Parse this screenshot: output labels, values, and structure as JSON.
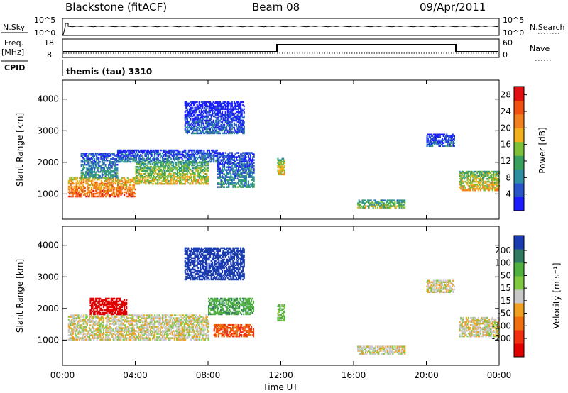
{
  "header": {
    "station": "Blackstone (fitACF)",
    "beam": "Beam 08",
    "date": "09/Apr/2011"
  },
  "panels": {
    "nsky_label": "N.Sky",
    "nsky_ticks": [
      "10^5",
      "10^0"
    ],
    "nsearch_label": "N.Search",
    "nsearch_ticks": [
      "10^5",
      "10^0"
    ],
    "freq_label": "Freq.",
    "freq_unit": "[MHz]",
    "freq_ticks": [
      "18",
      "8"
    ],
    "nave_label": "Nave",
    "nave_ticks": [
      "60",
      "0"
    ],
    "cpid_label": "CPID",
    "cpid_text": "themis (tau) 3310"
  },
  "chart_data": [
    {
      "type": "heatmap",
      "name": "power",
      "xlabel": "Time UT",
      "ylabel": "Slant Range [km]",
      "x_ticks": [
        "00:00",
        "04:00",
        "08:00",
        "12:00",
        "16:00",
        "20:00",
        "00:00"
      ],
      "xlim_hours": [
        0,
        24
      ],
      "y_ticks": [
        1000,
        2000,
        3000,
        4000
      ],
      "ylim_km": [
        200,
        4600
      ],
      "colorbar": {
        "label": "Power [dB]",
        "ticks": [
          4,
          8,
          12,
          16,
          20,
          24,
          28
        ],
        "range": [
          0,
          30
        ],
        "colors": [
          "#1c1cff",
          "#2a55c8",
          "#2f8fa0",
          "#3aa060",
          "#7fc03a",
          "#f0b020",
          "#f08020",
          "#f05010",
          "#e01010"
        ]
      },
      "regions": [
        {
          "t": [
            0.3,
            4.0
          ],
          "r": [
            900,
            1500
          ],
          "level": 26
        },
        {
          "t": [
            4.0,
            8.0
          ],
          "r": [
            1300,
            2000
          ],
          "level": 18
        },
        {
          "t": [
            1.0,
            3.0
          ],
          "r": [
            1500,
            2300
          ],
          "level": 10
        },
        {
          "t": [
            3.0,
            8.5
          ],
          "r": [
            2000,
            2400
          ],
          "level": 8
        },
        {
          "t": [
            8.5,
            10.5
          ],
          "r": [
            1200,
            2300
          ],
          "level": 9
        },
        {
          "t": [
            6.7,
            10.0
          ],
          "r": [
            2900,
            3900
          ],
          "level": 6
        },
        {
          "t": [
            11.8,
            12.2
          ],
          "r": [
            1600,
            2100
          ],
          "level": 20
        },
        {
          "t": [
            16.2,
            18.8
          ],
          "r": [
            550,
            800
          ],
          "level": 16
        },
        {
          "t": [
            21.8,
            24.0
          ],
          "r": [
            1100,
            1700
          ],
          "level": 20
        },
        {
          "t": [
            20.0,
            21.5
          ],
          "r": [
            2500,
            2900
          ],
          "level": 6
        }
      ]
    },
    {
      "type": "heatmap",
      "name": "velocity",
      "xlabel": "Time UT",
      "ylabel": "Slant Range [km]",
      "x_ticks": [
        "00:00",
        "04:00",
        "08:00",
        "12:00",
        "16:00",
        "20:00",
        "00:00"
      ],
      "xlim_hours": [
        0,
        24
      ],
      "y_ticks": [
        1000,
        2000,
        3000,
        4000
      ],
      "ylim_km": [
        200,
        4600
      ],
      "colorbar": {
        "label": "Velocity [m s⁻¹]",
        "ticks": [
          200,
          100,
          50,
          15,
          -15,
          -50,
          -100,
          -200
        ],
        "colors": [
          "#1a3cb0",
          "#2f7a60",
          "#4fb040",
          "#80c840",
          "#c8c8c8",
          "#f0a020",
          "#f07010",
          "#f03010",
          "#e00000"
        ]
      },
      "regions": [
        {
          "t": [
            0.3,
            8.0
          ],
          "r": [
            1000,
            1800
          ],
          "value": 0
        },
        {
          "t": [
            1.5,
            3.5
          ],
          "r": [
            1800,
            2300
          ],
          "value": -200
        },
        {
          "t": [
            8.0,
            10.5
          ],
          "r": [
            1800,
            2300
          ],
          "value": 60
        },
        {
          "t": [
            8.3,
            10.5
          ],
          "r": [
            1100,
            1500
          ],
          "value": -100
        },
        {
          "t": [
            6.7,
            10.0
          ],
          "r": [
            2900,
            3900
          ],
          "value": 200
        },
        {
          "t": [
            11.8,
            12.2
          ],
          "r": [
            1600,
            2100
          ],
          "value": 30
        },
        {
          "t": [
            16.2,
            18.8
          ],
          "r": [
            550,
            800
          ],
          "value": 0
        },
        {
          "t": [
            21.8,
            24.0
          ],
          "r": [
            1100,
            1700
          ],
          "value": 0
        },
        {
          "t": [
            20.0,
            21.5
          ],
          "r": [
            2500,
            2900
          ],
          "value": 0
        }
      ]
    }
  ]
}
